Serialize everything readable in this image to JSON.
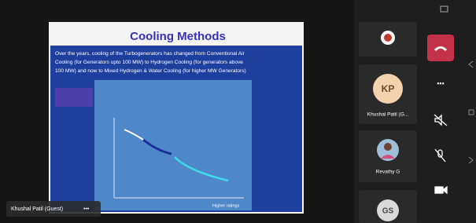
{
  "slide": {
    "title": "Cooling Methods",
    "body": [
      "Over the years, cooling  of the Turbogenerators has changed from Conventional  Air",
      "Cooling (for Generators  upto 100 MW) to Hydrogen Cooling (for generators  above",
      "100 MW) and now to Mixed Hydrogen & Water Cooling (for higher MW Generators)"
    ],
    "chart_caption": "Higher ratings"
  },
  "name_tag": {
    "name": "Khushal Patil (Guest)",
    "menu": "•••"
  },
  "participants": [
    {
      "initials": "KP",
      "name": "Khushal Patil (G..."
    },
    {
      "name": "Revathy G"
    },
    {
      "initials": "GS"
    }
  ],
  "controls": {
    "more": "•••"
  }
}
